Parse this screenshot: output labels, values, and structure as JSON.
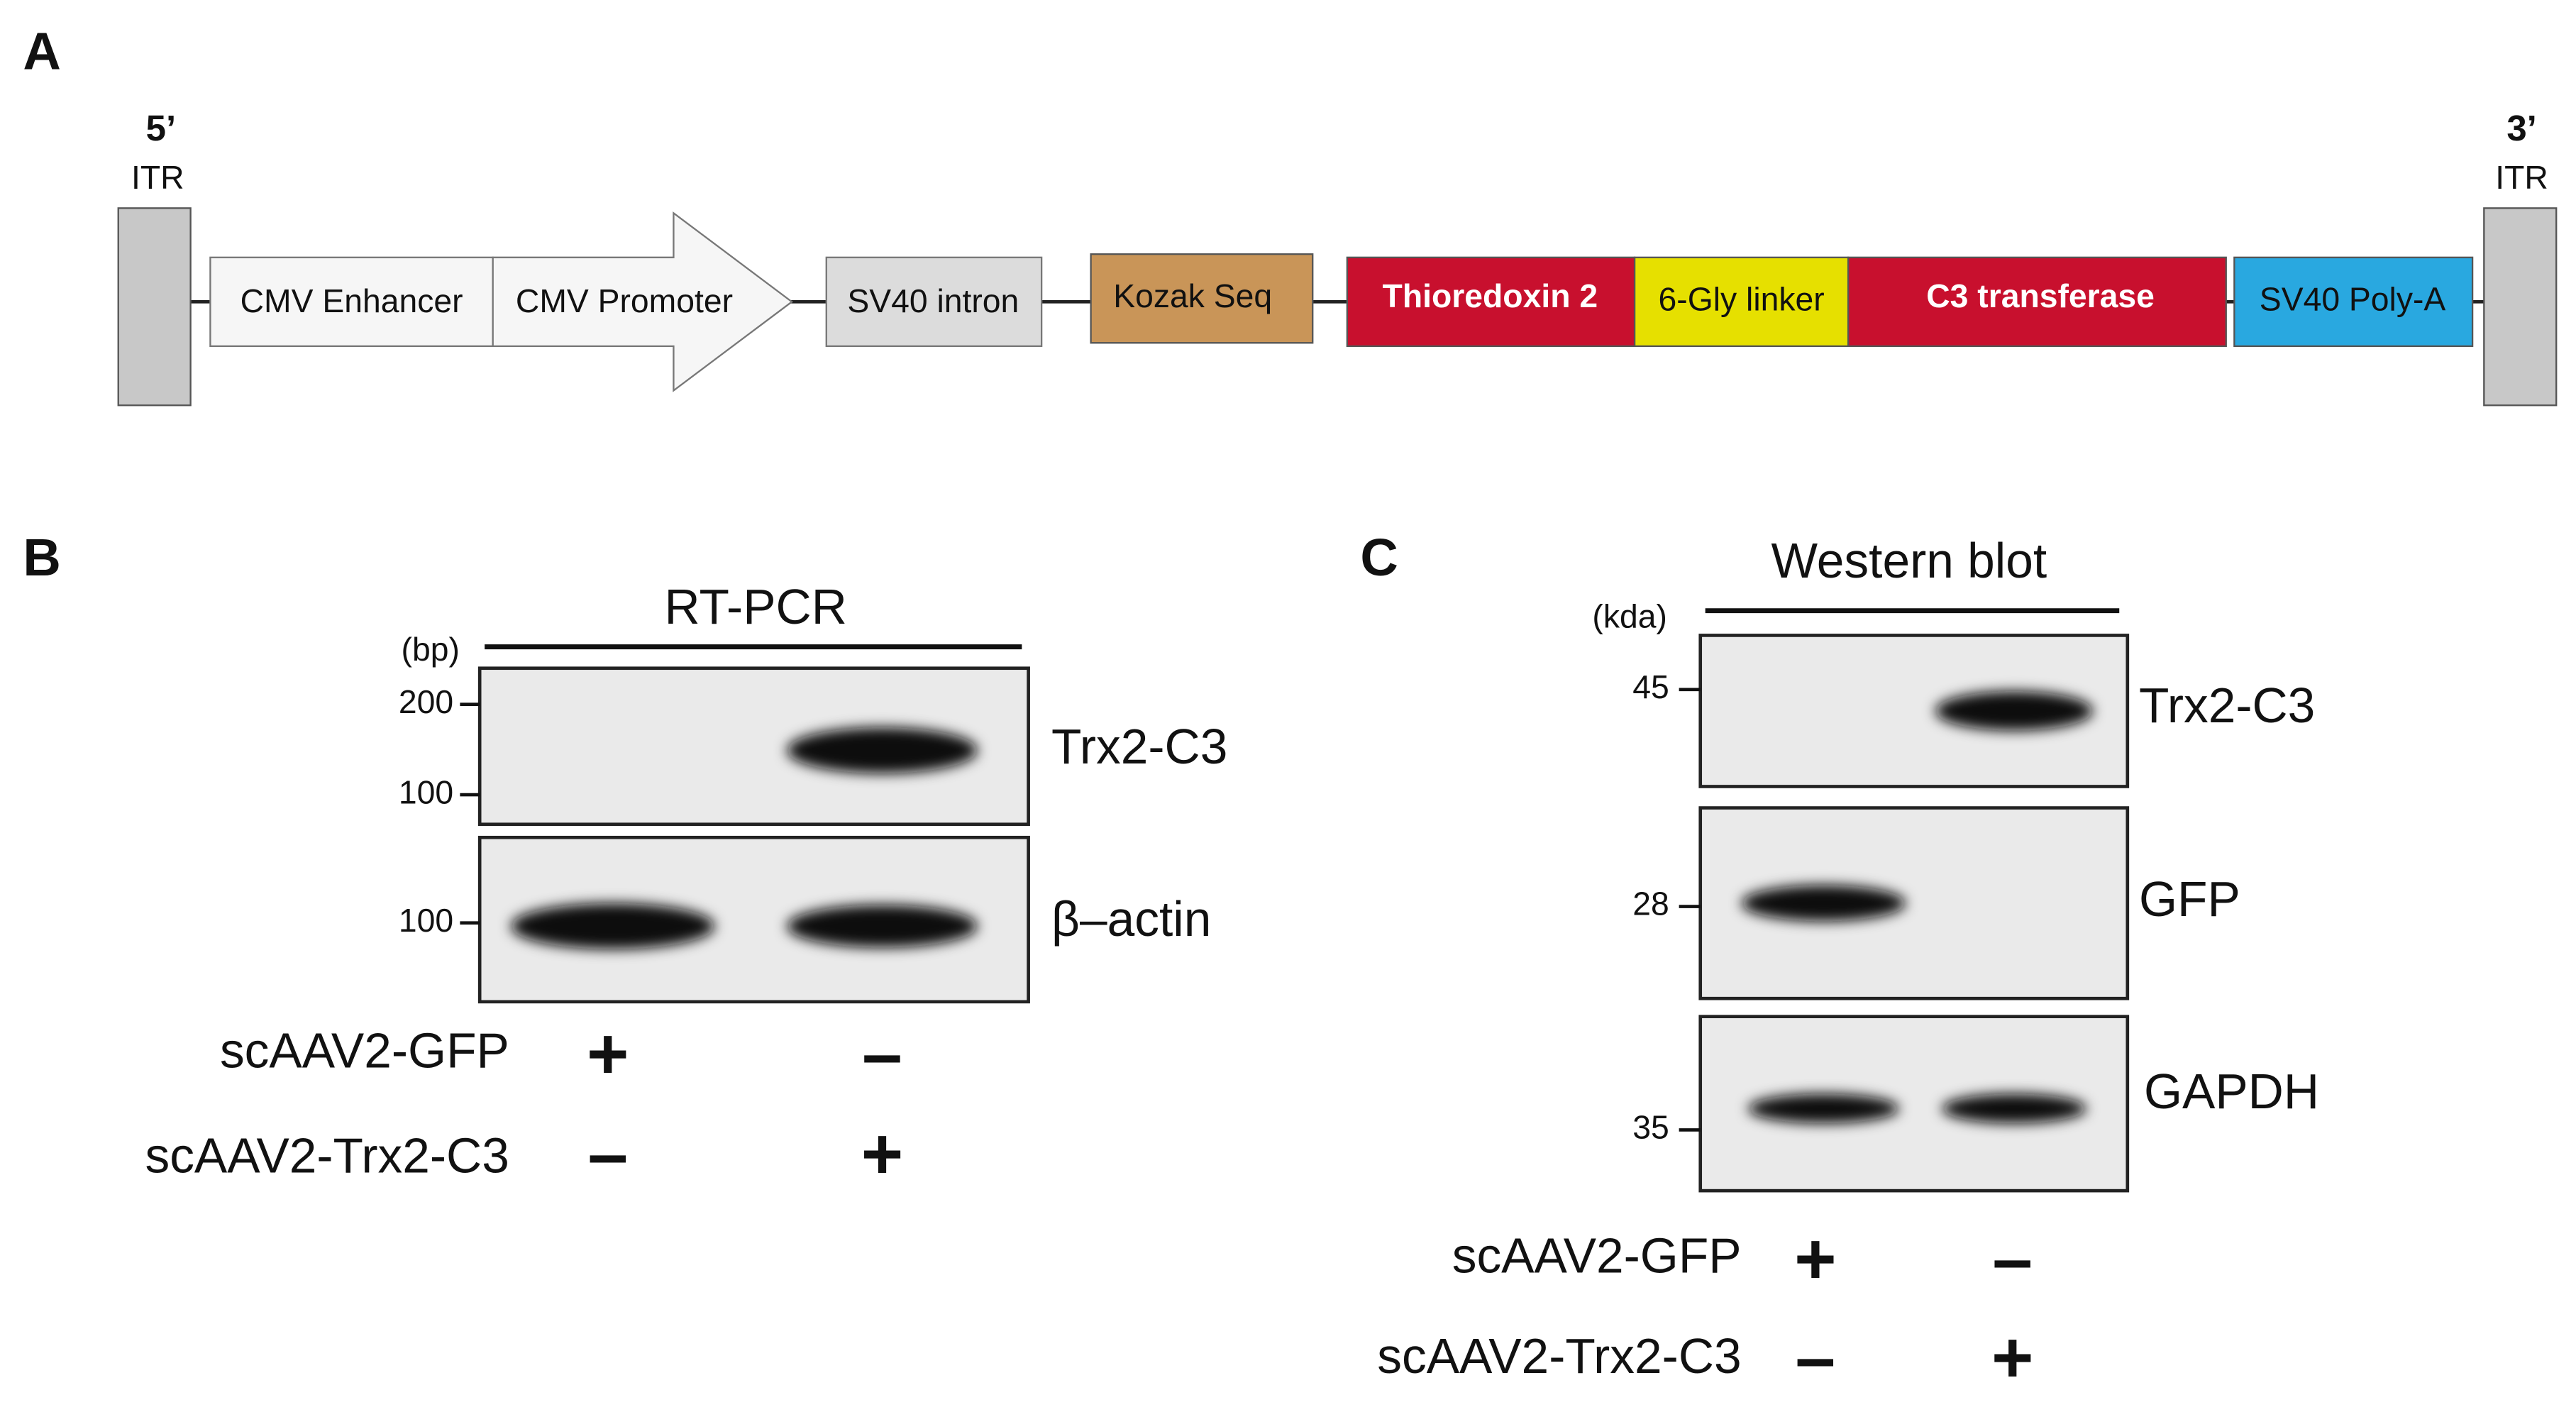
{
  "panel_a": {
    "label": "A",
    "five_prime": "5’",
    "left_itr": "ITR",
    "three_prime": "3’",
    "right_itr": "ITR",
    "elements": [
      "CMV Enhancer",
      "CMV Promoter",
      "SV40 intron",
      "Kozak Seq",
      "Thioredoxin 2",
      "6-Gly linker",
      "C3 transferase",
      "SV40 Poly-A"
    ]
  },
  "panel_b": {
    "label": "B",
    "title": "RT-PCR",
    "unit": "(bp)",
    "markers": [
      "200",
      "100",
      "100"
    ],
    "bands": [
      "Trx2-C3",
      "β–actin"
    ],
    "conditions": [
      {
        "name": "scAAV2-GFP",
        "lanes": [
          "+",
          "–"
        ]
      },
      {
        "name": "scAAV2-Trx2-C3",
        "lanes": [
          "–",
          "+"
        ]
      }
    ]
  },
  "panel_c": {
    "label": "C",
    "title": "Western blot",
    "unit": "(kda)",
    "markers": [
      "45",
      "28",
      "35"
    ],
    "bands": [
      "Trx2-C3",
      "GFP",
      "GAPDH"
    ],
    "conditions": [
      {
        "name": "scAAV2-GFP",
        "lanes": [
          "+",
          "–"
        ]
      },
      {
        "name": "scAAV2-Trx2-C3",
        "lanes": [
          "–",
          "+"
        ]
      }
    ]
  }
}
